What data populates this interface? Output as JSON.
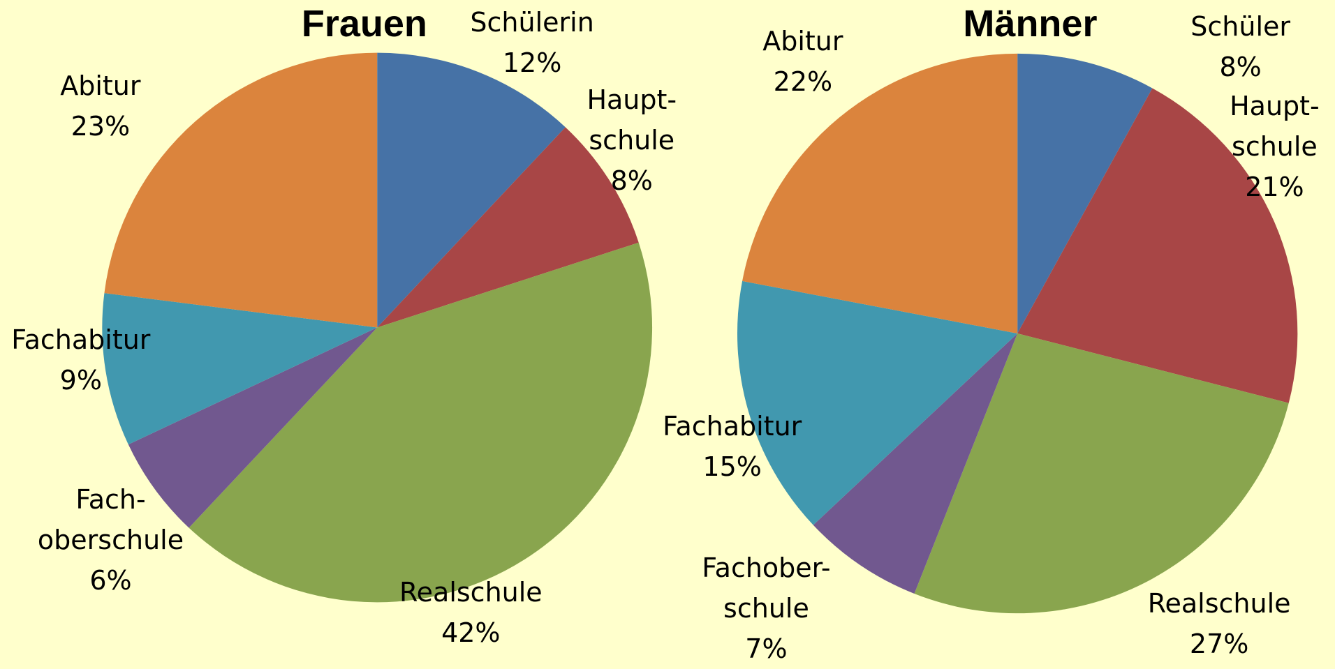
{
  "chart_data": [
    {
      "type": "pie",
      "title": "Frauen",
      "categories": [
        "Schülerin",
        "Haupt-\nschule",
        "Realschule",
        "Fach-\noberschule",
        "Fachabitur",
        "Abitur"
      ],
      "values": [
        12,
        8,
        42,
        6,
        9,
        23
      ],
      "value_labels": [
        "12%",
        "8%",
        "42%",
        "6%",
        "9%",
        "23%"
      ],
      "colors": [
        "#4672a6",
        "#a84646",
        "#89a54e",
        "#71588f",
        "#4198af",
        "#db843d"
      ]
    },
    {
      "type": "pie",
      "title": "Männer",
      "categories": [
        "Schüler",
        "Haupt-\nschule",
        "Realschule",
        "Fachober-\nschule",
        "Fachabitur",
        "Abitur"
      ],
      "values": [
        8,
        21,
        27,
        7,
        15,
        22
      ],
      "value_labels": [
        "8%",
        "21%",
        "27%",
        "7%",
        "15%",
        "22%"
      ],
      "colors": [
        "#4672a6",
        "#a84646",
        "#89a54e",
        "#71588f",
        "#4198af",
        "#db843d"
      ]
    }
  ]
}
